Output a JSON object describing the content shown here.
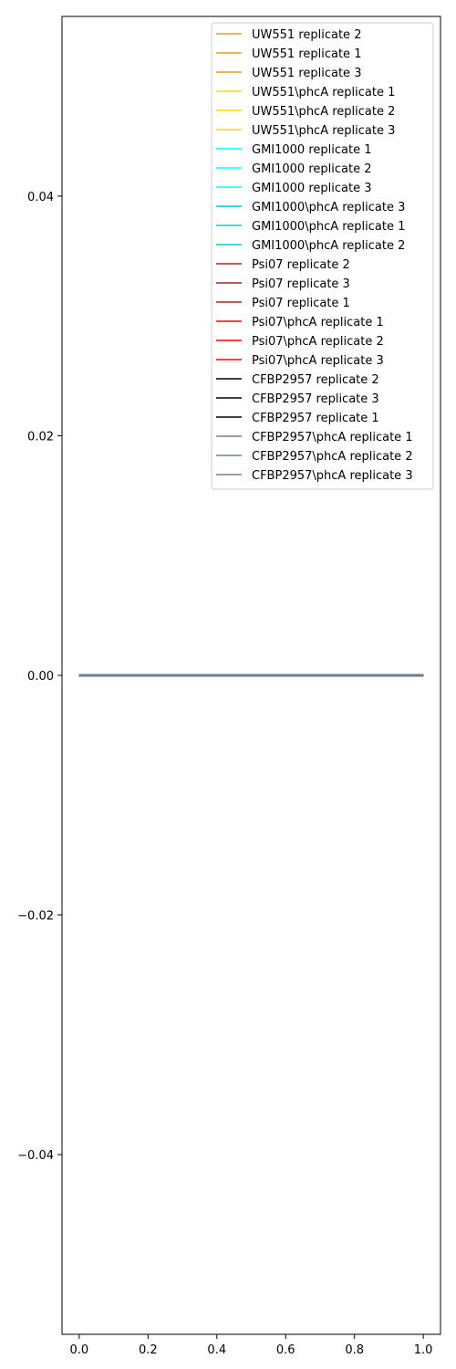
{
  "chart_data": {
    "type": "line",
    "title": "",
    "xlabel": "",
    "ylabel": "",
    "xlim": [
      -0.05,
      1.05
    ],
    "ylim": [
      -0.055,
      0.055
    ],
    "x_ticks": [
      0.0,
      0.2,
      0.4,
      0.6,
      0.8,
      1.0
    ],
    "x_tick_labels": [
      "0.0",
      "0.2",
      "0.4",
      "0.6",
      "0.8",
      "1.0"
    ],
    "y_ticks": [
      0.04,
      0.02,
      0.0,
      -0.02,
      -0.04
    ],
    "y_tick_labels": [
      "0.04",
      "0.02",
      "0.00",
      "−0.02",
      "−0.04"
    ],
    "grid": false,
    "legend_position": "top-right",
    "series": [
      {
        "name": "UW551 replicate 2",
        "color": "#DAA520",
        "x": [
          0.0,
          1.0
        ],
        "y": [
          0.0,
          0.0
        ]
      },
      {
        "name": "UW551 replicate 1",
        "color": "#DAA520",
        "x": [
          0.0,
          1.0
        ],
        "y": [
          0.0,
          0.0
        ]
      },
      {
        "name": "UW551 replicate 3",
        "color": "#DAA520",
        "x": [
          0.0,
          1.0
        ],
        "y": [
          0.0,
          0.0
        ]
      },
      {
        "name": "UW551\\phcA  replicate 1",
        "color": "#FFD700",
        "x": [
          0.0,
          1.0
        ],
        "y": [
          0.0,
          0.0
        ]
      },
      {
        "name": "UW551\\phcA  replicate 2",
        "color": "#FFD700",
        "x": [
          0.0,
          1.0
        ],
        "y": [
          0.0,
          0.0
        ]
      },
      {
        "name": "UW551\\phcA  replicate 3",
        "color": "#FFD700",
        "x": [
          0.0,
          1.0
        ],
        "y": [
          0.0,
          0.0
        ]
      },
      {
        "name": "GMI1000 replicate 1",
        "color": "#00FFFF",
        "x": [
          0.0,
          1.0
        ],
        "y": [
          0.0,
          0.0
        ]
      },
      {
        "name": "GMI1000 replicate 2",
        "color": "#00FFFF",
        "x": [
          0.0,
          1.0
        ],
        "y": [
          0.0,
          0.0
        ]
      },
      {
        "name": "GMI1000 replicate 3",
        "color": "#00FFFF",
        "x": [
          0.0,
          1.0
        ],
        "y": [
          0.0,
          0.0
        ]
      },
      {
        "name": "GMI1000\\phcA  replicate 3",
        "color": "#00CED1",
        "x": [
          0.0,
          1.0
        ],
        "y": [
          0.0,
          0.0
        ]
      },
      {
        "name": "GMI1000\\phcA  replicate 1",
        "color": "#00CED1",
        "x": [
          0.0,
          1.0
        ],
        "y": [
          0.0,
          0.0
        ]
      },
      {
        "name": "GMI1000\\phcA  replicate 2",
        "color": "#00CED1",
        "x": [
          0.0,
          1.0
        ],
        "y": [
          0.0,
          0.0
        ]
      },
      {
        "name": "Psi07 replicate 2",
        "color": "#B22222",
        "x": [
          0.0,
          1.0
        ],
        "y": [
          0.0,
          0.0
        ]
      },
      {
        "name": "Psi07 replicate 3",
        "color": "#B22222",
        "x": [
          0.0,
          1.0
        ],
        "y": [
          0.0,
          0.0
        ]
      },
      {
        "name": "Psi07 replicate 1",
        "color": "#B22222",
        "x": [
          0.0,
          1.0
        ],
        "y": [
          0.0,
          0.0
        ]
      },
      {
        "name": "Psi07\\phcA  replicate 1",
        "color": "#FF0000",
        "x": [
          0.0,
          1.0
        ],
        "y": [
          0.0,
          0.0
        ]
      },
      {
        "name": "Psi07\\phcA  replicate 2",
        "color": "#FF0000",
        "x": [
          0.0,
          1.0
        ],
        "y": [
          0.0,
          0.0
        ]
      },
      {
        "name": "Psi07\\phcA  replicate 3",
        "color": "#FF0000",
        "x": [
          0.0,
          1.0
        ],
        "y": [
          0.0,
          0.0
        ]
      },
      {
        "name": "CFBP2957 replicate 2",
        "color": "#000000",
        "x": [
          0.0,
          1.0
        ],
        "y": [
          0.0,
          0.0
        ]
      },
      {
        "name": "CFBP2957 replicate 3",
        "color": "#000000",
        "x": [
          0.0,
          1.0
        ],
        "y": [
          0.0,
          0.0
        ]
      },
      {
        "name": "CFBP2957 replicate 1",
        "color": "#000000",
        "x": [
          0.0,
          1.0
        ],
        "y": [
          0.0,
          0.0
        ]
      },
      {
        "name": "CFBP2957\\phcA  replicate 1",
        "color": "#708090",
        "x": [
          0.0,
          1.0
        ],
        "y": [
          0.0,
          0.0
        ]
      },
      {
        "name": "CFBP2957\\phcA  replicate 2",
        "color": "#708090",
        "x": [
          0.0,
          1.0
        ],
        "y": [
          0.0,
          0.0
        ]
      },
      {
        "name": "CFBP2957\\phcA  replicate 3",
        "color": "#708090",
        "x": [
          0.0,
          1.0
        ],
        "y": [
          0.0,
          0.0
        ]
      }
    ]
  }
}
